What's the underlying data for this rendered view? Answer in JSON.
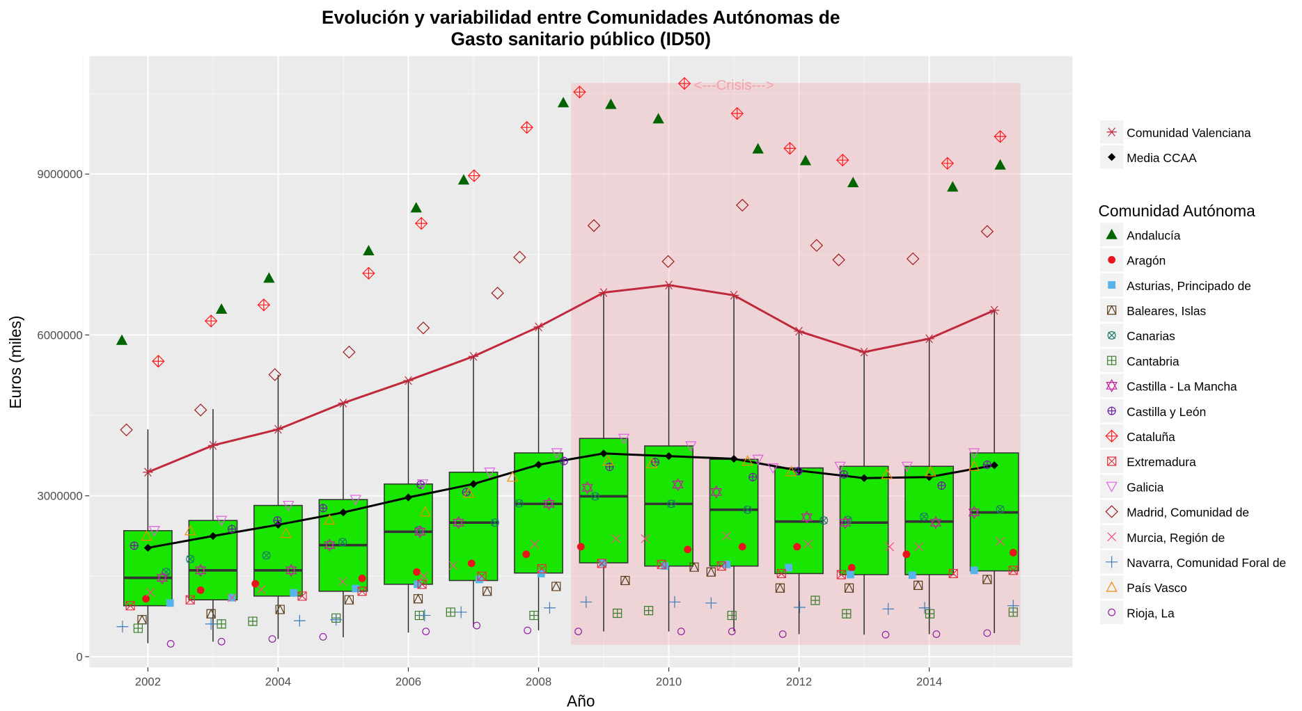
{
  "chart_data": {
    "type": "boxplot",
    "title": "Evolución y variabilidad entre Comunidades Autónomas de",
    "subtitle": "Gasto sanitario público (ID50)",
    "xlabel": "Año",
    "ylabel": "Euros (miles)",
    "xlim": [
      2001.1,
      2016.2
    ],
    "ylim": [
      -200000,
      11200000
    ],
    "x_ticks": [
      2002,
      2004,
      2006,
      2008,
      2010,
      2012,
      2014
    ],
    "y_ticks": [
      0,
      3000000,
      6000000,
      9000000
    ],
    "y_tick_labels": [
      "0",
      "3000000",
      "6000000",
      "9000000"
    ],
    "grid": true,
    "box_fill": "#19e600",
    "crisis": {
      "label": "<---Crisis--->",
      "x_range": [
        2008.5,
        2015.4
      ],
      "y_range": [
        220000,
        10700000
      ],
      "color": "#f4a0a8"
    },
    "years": [
      2002,
      2003,
      2004,
      2005,
      2006,
      2007,
      2008,
      2009,
      2010,
      2011,
      2012,
      2013,
      2014,
      2015
    ],
    "boxes": [
      {
        "min": 250000,
        "q1": 950000,
        "median": 1470000,
        "q3": 2350000,
        "max": 4240000
      },
      {
        "min": 280000,
        "q1": 1060000,
        "median": 1610000,
        "q3": 2540000,
        "max": 4620000
      },
      {
        "min": 330000,
        "q1": 1130000,
        "median": 1610000,
        "q3": 2820000,
        "max": 5260000
      },
      {
        "min": 360000,
        "q1": 1220000,
        "median": 2080000,
        "q3": 2930000,
        "max": 4730000
      },
      {
        "min": 450000,
        "q1": 1350000,
        "median": 2330000,
        "q3": 3220000,
        "max": 5150000
      },
      {
        "min": 550000,
        "q1": 1420000,
        "median": 2500000,
        "q3": 3440000,
        "max": 5600000
      },
      {
        "min": 490000,
        "q1": 1560000,
        "median": 2850000,
        "q3": 3800000,
        "max": 6150000
      },
      {
        "min": 470000,
        "q1": 1750000,
        "median": 2990000,
        "q3": 4070000,
        "max": 6790000
      },
      {
        "min": 470000,
        "q1": 1690000,
        "median": 2850000,
        "q3": 3930000,
        "max": 6930000
      },
      {
        "min": 470000,
        "q1": 1690000,
        "median": 2740000,
        "q3": 3680000,
        "max": 6740000
      },
      {
        "min": 420000,
        "q1": 1550000,
        "median": 2520000,
        "q3": 3520000,
        "max": 6070000
      },
      {
        "min": 410000,
        "q1": 1530000,
        "median": 2500000,
        "q3": 3550000,
        "max": 5680000
      },
      {
        "min": 420000,
        "q1": 1530000,
        "median": 2520000,
        "q3": 3550000,
        "max": 5930000
      },
      {
        "min": 440000,
        "q1": 1600000,
        "median": 2690000,
        "q3": 3800000,
        "max": 6460000
      }
    ],
    "lines": [
      {
        "name": "Comunidad Valenciana",
        "color": "#c0283c",
        "shape": "asterisk",
        "values": [
          3440000,
          3940000,
          4240000,
          4730000,
          5150000,
          5600000,
          6150000,
          6790000,
          6930000,
          6740000,
          6070000,
          5680000,
          5930000,
          6460000
        ]
      },
      {
        "name": "Media CCAA",
        "color": "#000000",
        "shape": "diamond",
        "values": [
          2030000,
          2250000,
          2460000,
          2690000,
          2970000,
          3220000,
          3580000,
          3790000,
          3740000,
          3690000,
          3470000,
          3330000,
          3350000,
          3570000
        ]
      }
    ],
    "legend_title": "Comunidad Autónoma",
    "legend_position": "right",
    "series": [
      {
        "name": "Andalucía",
        "color": "#006400",
        "shape": "triangle-filled",
        "values": [
          5900000,
          6480000,
          7060000,
          7570000,
          8370000,
          8890000,
          10330000,
          10300000,
          10030000,
          9470000,
          9250000,
          8840000,
          8760000,
          9170000
        ]
      },
      {
        "name": "Aragón",
        "color": "#e8141c",
        "shape": "dot",
        "values": [
          1080000,
          1240000,
          1360000,
          1460000,
          1580000,
          1740000,
          1910000,
          2050000,
          2000000,
          2050000,
          2050000,
          1660000,
          1910000,
          1940000
        ]
      },
      {
        "name": "Asturias, Principado de",
        "color": "#56b4e9",
        "shape": "square-filled",
        "values": [
          1000000,
          1100000,
          1190000,
          1270000,
          1350000,
          1440000,
          1550000,
          1750000,
          1690000,
          1720000,
          1660000,
          1530000,
          1520000,
          1610000
        ]
      },
      {
        "name": "Baleares, Islas",
        "color": "#5a3a1a",
        "shape": "square-triangle",
        "values": [
          690000,
          800000,
          880000,
          1060000,
          1080000,
          1220000,
          1310000,
          1420000,
          1670000,
          1580000,
          1280000,
          1280000,
          1330000,
          1440000
        ]
      },
      {
        "name": "Canarias",
        "color": "#1b7a6a",
        "shape": "square-x-circle",
        "values": [
          1580000,
          1820000,
          1890000,
          2140000,
          2360000,
          2500000,
          2860000,
          2990000,
          2850000,
          2740000,
          2540000,
          2550000,
          2610000,
          2750000
        ]
      },
      {
        "name": "Cantabria",
        "color": "#3a7a2a",
        "shape": "square-plus",
        "values": [
          530000,
          610000,
          660000,
          720000,
          770000,
          830000,
          770000,
          810000,
          860000,
          770000,
          1050000,
          800000,
          800000,
          830000
        ]
      },
      {
        "name": "Castilla - La Mancha",
        "color": "#c020a0",
        "shape": "star-david",
        "values": [
          1470000,
          1610000,
          1610000,
          2080000,
          2330000,
          2500000,
          2850000,
          3150000,
          3210000,
          3070000,
          2600000,
          2500000,
          2500000,
          2690000
        ]
      },
      {
        "name": "Castilla y León",
        "color": "#6a1aa8",
        "shape": "circle-plus",
        "values": [
          2070000,
          2380000,
          2540000,
          2770000,
          3210000,
          3070000,
          3650000,
          3540000,
          3630000,
          3350000,
          3460000,
          3400000,
          3190000,
          3580000
        ]
      },
      {
        "name": "Cataluña",
        "color": "#ff1a1a",
        "shape": "diamond-plus",
        "values": [
          5510000,
          6260000,
          6560000,
          7150000,
          8080000,
          8970000,
          9870000,
          10530000,
          10690000,
          10130000,
          9480000,
          9260000,
          9200000,
          9700000
        ]
      },
      {
        "name": "Extremadura",
        "color": "#e03040",
        "shape": "square-x",
        "values": [
          950000,
          1060000,
          1130000,
          1220000,
          1350000,
          1500000,
          1640000,
          1740000,
          1720000,
          1690000,
          1550000,
          1530000,
          1550000,
          1610000
        ]
      },
      {
        "name": "Galicia",
        "color": "#e060e0",
        "shape": "triangle-down",
        "values": [
          2350000,
          2540000,
          2820000,
          2930000,
          3220000,
          3440000,
          3800000,
          4070000,
          3930000,
          3680000,
          3520000,
          3550000,
          3550000,
          3800000
        ]
      },
      {
        "name": "Madrid, Comunidad de",
        "color": "#a01818",
        "shape": "diamond",
        "values": [
          4230000,
          4600000,
          5260000,
          5680000,
          6130000,
          6780000,
          7450000,
          8040000,
          7370000,
          8420000,
          7670000,
          7400000,
          7420000,
          7930000
        ]
      },
      {
        "name": "Murcia, Región de",
        "color": "#f05080",
        "shape": "x",
        "values": [
          1200000,
          1100000,
          1250000,
          1400000,
          1500000,
          1700000,
          2100000,
          2200000,
          2200000,
          2250000,
          2100000,
          2050000,
          2050000,
          2150000
        ]
      },
      {
        "name": "Navarra, Comunidad Foral de",
        "color": "#3a7ab8",
        "shape": "plus",
        "values": [
          560000,
          610000,
          670000,
          690000,
          770000,
          830000,
          910000,
          1020000,
          1020000,
          1000000,
          920000,
          890000,
          910000,
          950000
        ]
      },
      {
        "name": "País Vasco",
        "color": "#f08c00",
        "shape": "triangle",
        "values": [
          2250000,
          2350000,
          2300000,
          2550000,
          2700000,
          3050000,
          3350000,
          3650000,
          3600000,
          3650000,
          3450000,
          3400000,
          3450000,
          3550000
        ]
      },
      {
        "name": "Rioja, La",
        "color": "#9020a0",
        "shape": "circle",
        "values": [
          240000,
          280000,
          330000,
          370000,
          470000,
          580000,
          490000,
          470000,
          470000,
          470000,
          420000,
          410000,
          420000,
          440000
        ]
      }
    ]
  }
}
